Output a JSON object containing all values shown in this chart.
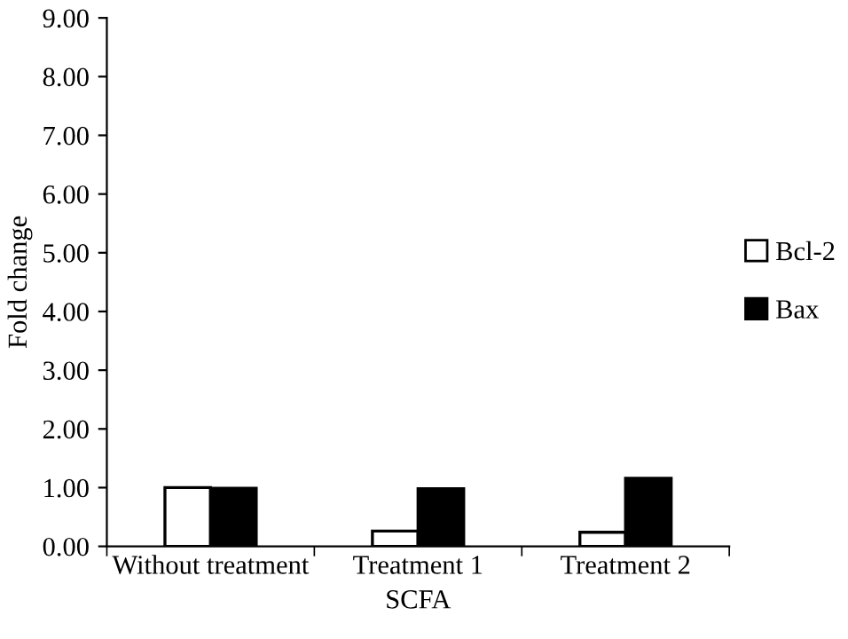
{
  "chart_data": {
    "type": "bar",
    "xlabel": "SCFA",
    "ylabel": "Fold change",
    "categories": [
      "Without treatment",
      "Treatment 1",
      "Treatment 2"
    ],
    "series": [
      {
        "name": "Bcl-2",
        "color": "#ffffff",
        "values": [
          1.0,
          0.26,
          0.24
        ]
      },
      {
        "name": "Bax",
        "color": "#000000",
        "values": [
          0.99,
          0.98,
          1.16
        ]
      }
    ],
    "ylim": [
      0,
      9
    ],
    "yticks": [
      {
        "value": 0,
        "label": "0.00"
      },
      {
        "value": 1,
        "label": "1.00"
      },
      {
        "value": 2,
        "label": "2.00"
      },
      {
        "value": 3,
        "label": "3.00"
      },
      {
        "value": 4,
        "label": "4.00"
      },
      {
        "value": 5,
        "label": "5.00"
      },
      {
        "value": 6,
        "label": "6.00"
      },
      {
        "value": 7,
        "label": "7.00"
      },
      {
        "value": 8,
        "label": "8.00"
      },
      {
        "value": 9,
        "label": "9.00"
      }
    ],
    "grid": false,
    "legend": "right"
  }
}
